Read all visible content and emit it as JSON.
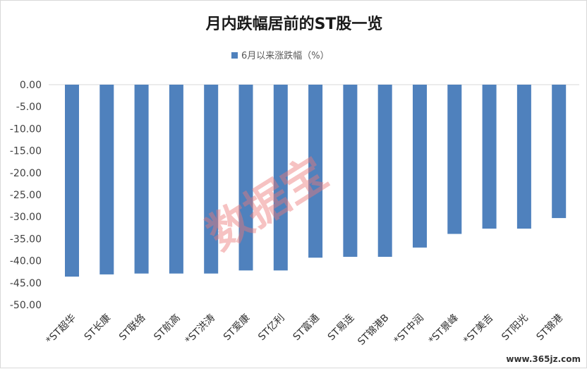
{
  "chart_data": {
    "type": "bar",
    "title": "月内跌幅居前的ST股一览",
    "legend": {
      "position": "top",
      "entries": [
        "6月以来涨跌幅（%）"
      ]
    },
    "series": [
      {
        "name": "6月以来涨跌幅（%）",
        "color": "#4f81bd",
        "values": [
          -43.6,
          -43.1,
          -42.9,
          -42.9,
          -42.9,
          -42.2,
          -42.2,
          -39.3,
          -39.1,
          -39.1,
          -37.0,
          -33.9,
          -32.7,
          -32.7,
          -30.3
        ]
      }
    ],
    "categories": [
      "*ST超华",
      "ST长康",
      "ST联络",
      "ST航高",
      "*ST洪涛",
      "ST爱康",
      "ST亿利",
      "ST富通",
      "ST易连",
      "ST锦港B",
      "*ST中润",
      "*ST景峰",
      "*ST美吉",
      "ST阳光",
      "ST锦港"
    ],
    "yticks": [
      "0.00",
      "-5.00",
      "-10.00",
      "-15.00",
      "-20.00",
      "-25.00",
      "-30.00",
      "-35.00",
      "-40.00",
      "-45.00",
      "-50.00"
    ],
    "ylim": [
      -50,
      0
    ],
    "grid": false
  },
  "watermark": {
    "text": "数据宝",
    "site": "www.365jz.com"
  }
}
